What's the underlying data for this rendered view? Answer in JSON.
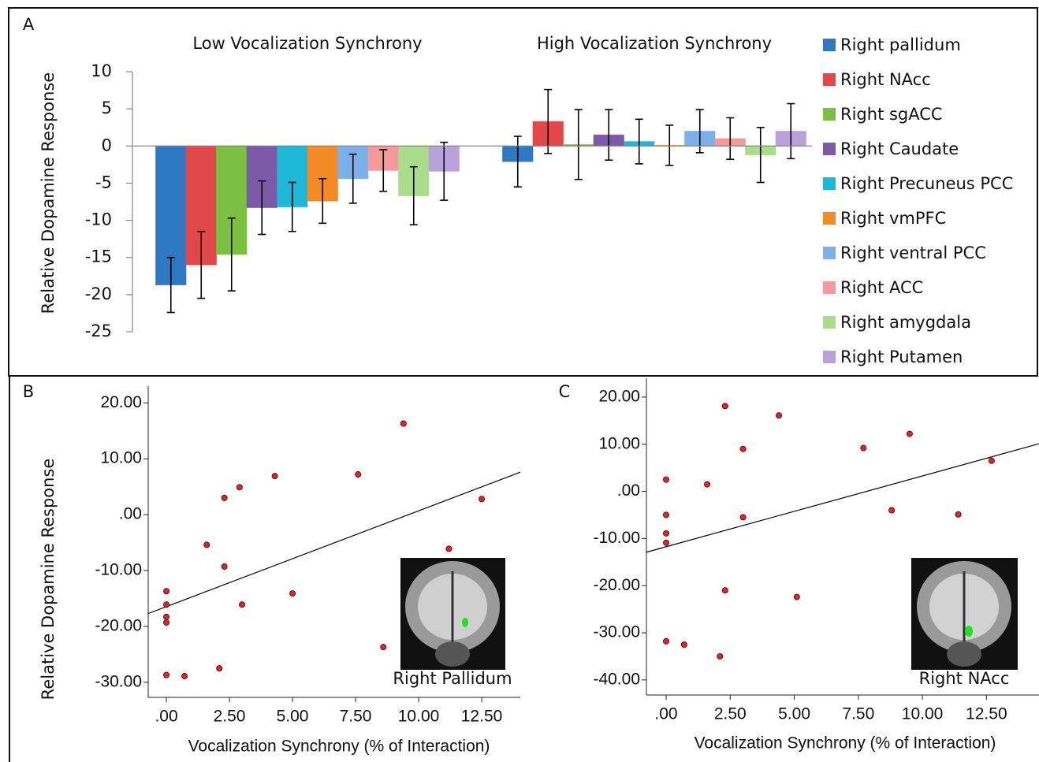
{
  "chart_data": [
    {
      "type": "bar",
      "panel": "A",
      "ylabel": "Relative Dopamine Response",
      "categories": [
        "Low Vocalization Synchrony",
        "High Vocalization Synchrony"
      ],
      "series": [
        {
          "name": "Right pallidum",
          "color": "#2f78c4",
          "values": [
            -18.7,
            -2.1
          ],
          "errors": [
            3.7,
            3.4
          ]
        },
        {
          "name": "Right NAcc",
          "color": "#e2474a",
          "values": [
            -16.0,
            3.3
          ],
          "errors": [
            4.5,
            4.3
          ]
        },
        {
          "name": "Right sgACC",
          "color": "#7cc043",
          "values": [
            -14.6,
            0.2
          ],
          "errors": [
            4.9,
            4.7
          ]
        },
        {
          "name": "Right Caudate",
          "color": "#7c5aa8",
          "values": [
            -8.3,
            1.5
          ],
          "errors": [
            3.6,
            3.4
          ]
        },
        {
          "name": "Right Precuneus PCC",
          "color": "#1db7d8",
          "values": [
            -8.2,
            0.6
          ],
          "errors": [
            3.3,
            3.0
          ]
        },
        {
          "name": "Right vmPFC",
          "color": "#f28a25",
          "values": [
            -7.4,
            0.1
          ],
          "errors": [
            3.0,
            2.7
          ]
        },
        {
          "name": "Right ventral PCC",
          "color": "#7dafe8",
          "values": [
            -4.4,
            2.0
          ],
          "errors": [
            3.3,
            2.9
          ]
        },
        {
          "name": "Right ACC",
          "color": "#f4999a",
          "values": [
            -3.3,
            1.0
          ],
          "errors": [
            2.8,
            2.8
          ]
        },
        {
          "name": "Right amygdala",
          "color": "#a9dc8b",
          "values": [
            -6.7,
            -1.2
          ],
          "errors": [
            3.9,
            3.7
          ]
        },
        {
          "name": "Right Putamen",
          "color": "#b9a2da",
          "values": [
            -3.4,
            2.0
          ],
          "errors": [
            3.9,
            3.7
          ]
        }
      ],
      "ylim": [
        -25,
        10
      ],
      "yticks": [
        10,
        5,
        0,
        -5,
        -10,
        -15,
        -20,
        -25
      ],
      "legend": "right"
    },
    {
      "type": "scatter",
      "panel": "B",
      "annotation": "Right Pallidum",
      "xlabel": "Vocalization Synchrony (% of Interaction)",
      "ylabel": "Relative Dopamine Response",
      "color": "#e02424",
      "x": [
        0,
        0,
        0,
        0,
        0,
        0.72,
        1.6,
        2.3,
        2.3,
        2.1,
        2.9,
        3.0,
        4.3,
        5.0,
        7.6,
        8.6,
        9.4,
        11.2,
        12.5
      ],
      "y": [
        -13.7,
        -16.1,
        -18.3,
        -19.3,
        -28.7,
        -28.9,
        -5.4,
        3.0,
        -9.3,
        -27.5,
        4.9,
        -16.1,
        6.9,
        -14.1,
        7.2,
        -23.7,
        16.3,
        -6.1,
        2.8
      ],
      "fit_line": {
        "x": [
          -0.72,
          14.03
        ],
        "y": [
          -17.7,
          7.6
        ]
      },
      "xlim": [
        -0.72,
        14.03
      ],
      "ylim": [
        -32.7,
        23.0
      ],
      "xticks": [
        {
          "value": 0,
          "label": ".00"
        },
        {
          "value": 2.5,
          "label": "2.50"
        },
        {
          "value": 5,
          "label": "5.00"
        },
        {
          "value": 7.5,
          "label": "7.50"
        },
        {
          "value": 10,
          "label": "10.00"
        },
        {
          "value": 12.5,
          "label": "12.50"
        }
      ],
      "yticks": [
        {
          "value": 20,
          "label": "20.00"
        },
        {
          "value": 10,
          "label": "10.00"
        },
        {
          "value": 0,
          "label": ".00"
        },
        {
          "value": -10,
          "label": "-10.00"
        },
        {
          "value": -20,
          "label": "-20.00"
        },
        {
          "value": -30,
          "label": "-30.00"
        }
      ]
    },
    {
      "type": "scatter",
      "panel": "C",
      "annotation": "Right NAcc",
      "xlabel": "Vocalization Synchrony (% of Interaction)",
      "color": "#e02424",
      "x": [
        0,
        0,
        0,
        0,
        0,
        0.7,
        1.6,
        2.3,
        2.3,
        2.1,
        3.0,
        3.0,
        4.4,
        5.1,
        7.7,
        8.8,
        9.5,
        11.4,
        12.7
      ],
      "y": [
        2.5,
        -5.0,
        -8.9,
        -10.9,
        -31.8,
        -32.5,
        1.5,
        18.1,
        -21.0,
        -35.0,
        9.0,
        -5.5,
        16.1,
        -22.4,
        9.2,
        -4.0,
        12.2,
        -4.9,
        6.5
      ],
      "fit_line": {
        "x": [
          -0.77,
          14.55
        ],
        "y": [
          -12.9,
          10.1
        ]
      },
      "xlim": [
        -0.77,
        14.55
      ],
      "ylim": [
        -43.2,
        24.0
      ],
      "xticks": [
        {
          "value": 0,
          "label": ".00"
        },
        {
          "value": 2.5,
          "label": "2.50"
        },
        {
          "value": 5,
          "label": "5.00"
        },
        {
          "value": 7.5,
          "label": "7.50"
        },
        {
          "value": 10,
          "label": "10.00"
        },
        {
          "value": 12.5,
          "label": "12.50"
        }
      ],
      "yticks": [
        {
          "value": 20,
          "label": "20.00"
        },
        {
          "value": 10,
          "label": "10.00"
        },
        {
          "value": 0,
          "label": ".00"
        },
        {
          "value": -10,
          "label": "-10.00"
        },
        {
          "value": -20,
          "label": "-20.00"
        },
        {
          "value": -30,
          "label": "-30.00"
        },
        {
          "value": -40,
          "label": "-40.00"
        }
      ]
    }
  ]
}
